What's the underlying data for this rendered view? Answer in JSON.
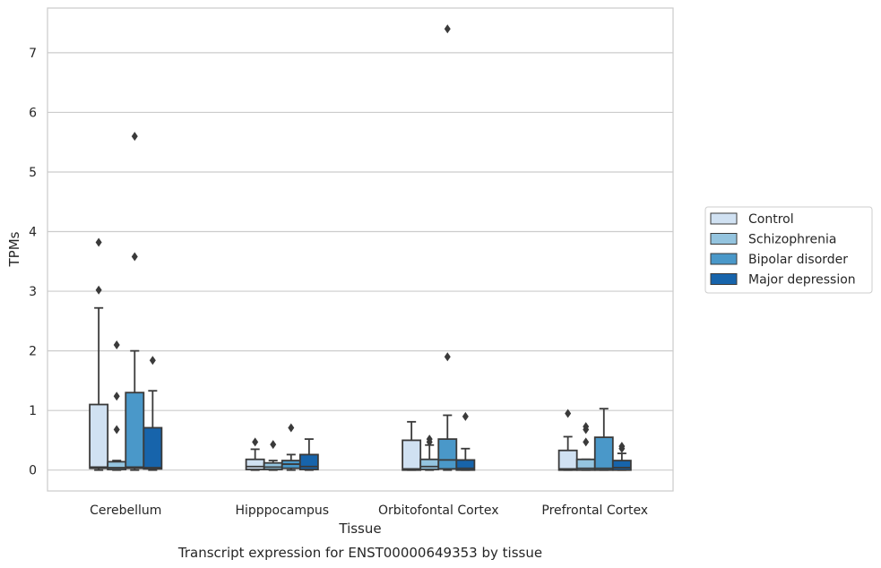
{
  "chart_data": {
    "type": "box",
    "xlabel": "Tissue",
    "ylabel": "TPMs",
    "caption": "Transcript expression for ENST00000649353 by tissue",
    "ylim": [
      -0.35,
      7.75
    ],
    "yticks": [
      0,
      1,
      2,
      3,
      4,
      5,
      6,
      7
    ],
    "grid": true,
    "legend": {
      "placement": "right",
      "entries": [
        "Control",
        "Schizophrenia",
        "Bipolar disorder",
        "Major depression"
      ]
    },
    "colors": [
      "#d0e1f2",
      "#94c4df",
      "#4a98c9",
      "#1764ab"
    ],
    "categories": [
      "Cerebellum",
      "Hipppocampus",
      "Orbitofontal Cortex",
      "Prefrontal Cortex"
    ],
    "series": [
      {
        "name": "Control",
        "boxes": [
          {
            "whislo": 0.0,
            "q1": 0.03,
            "med": 0.05,
            "q3": 1.1,
            "whishi": 2.72,
            "fliers": [
              3.02,
              3.82
            ]
          },
          {
            "whislo": 0.0,
            "q1": 0.01,
            "med": 0.06,
            "q3": 0.18,
            "whishi": 0.35,
            "fliers": [
              0.47
            ]
          },
          {
            "whislo": 0.0,
            "q1": 0.0,
            "med": 0.02,
            "q3": 0.5,
            "whishi": 0.81,
            "fliers": []
          },
          {
            "whislo": 0.0,
            "q1": 0.0,
            "med": 0.02,
            "q3": 0.33,
            "whishi": 0.56,
            "fliers": [
              0.95
            ]
          }
        ]
      },
      {
        "name": "Schizophrenia",
        "boxes": [
          {
            "whislo": 0.0,
            "q1": 0.01,
            "med": 0.04,
            "q3": 0.14,
            "whishi": 0.16,
            "fliers": [
              0.68,
              1.24,
              2.1
            ]
          },
          {
            "whislo": 0.0,
            "q1": 0.01,
            "med": 0.05,
            "q3": 0.12,
            "whishi": 0.16,
            "fliers": [
              0.43
            ]
          },
          {
            "whislo": 0.0,
            "q1": 0.01,
            "med": 0.06,
            "q3": 0.18,
            "whishi": 0.42,
            "fliers": [
              0.47,
              0.52
            ]
          },
          {
            "whislo": 0.0,
            "q1": 0.0,
            "med": 0.03,
            "q3": 0.18,
            "whishi": 0.18,
            "fliers": [
              0.47,
              0.68,
              0.73
            ]
          }
        ]
      },
      {
        "name": "Bipolar disorder",
        "boxes": [
          {
            "whislo": 0.0,
            "q1": 0.03,
            "med": 0.05,
            "q3": 1.3,
            "whishi": 2.0,
            "fliers": [
              3.58,
              5.6
            ]
          },
          {
            "whislo": 0.0,
            "q1": 0.03,
            "med": 0.1,
            "q3": 0.16,
            "whishi": 0.26,
            "fliers": [
              0.71
            ]
          },
          {
            "whislo": 0.0,
            "q1": 0.02,
            "med": 0.17,
            "q3": 0.52,
            "whishi": 0.92,
            "fliers": [
              1.9,
              7.4
            ]
          },
          {
            "whislo": 0.0,
            "q1": 0.0,
            "med": 0.03,
            "q3": 0.55,
            "whishi": 1.03,
            "fliers": []
          }
        ]
      },
      {
        "name": "Major depression",
        "boxes": [
          {
            "whislo": 0.0,
            "q1": 0.02,
            "med": 0.04,
            "q3": 0.71,
            "whishi": 1.33,
            "fliers": [
              1.84
            ]
          },
          {
            "whislo": 0.0,
            "q1": 0.01,
            "med": 0.06,
            "q3": 0.26,
            "whishi": 0.52,
            "fliers": []
          },
          {
            "whislo": 0.0,
            "q1": 0.0,
            "med": 0.03,
            "q3": 0.17,
            "whishi": 0.36,
            "fliers": [
              0.9
            ]
          },
          {
            "whislo": 0.0,
            "q1": 0.0,
            "med": 0.04,
            "q3": 0.16,
            "whishi": 0.28,
            "fliers": [
              0.36,
              0.4
            ]
          }
        ]
      }
    ]
  }
}
